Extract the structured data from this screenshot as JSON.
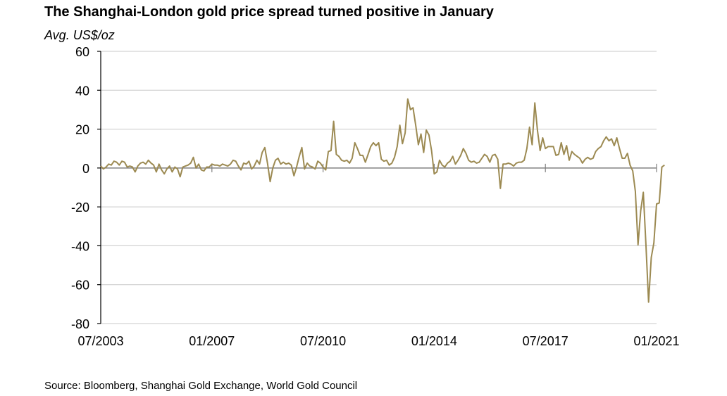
{
  "chart_data": {
    "type": "line",
    "title": "The Shanghai-London gold price spread turned positive in January",
    "ylabel": "Avg. US$/oz",
    "xlabel": "",
    "source": "Source: Bloomberg, Shanghai Gold Exchange, World Gold Council",
    "ylim": [
      -80,
      60
    ],
    "yticks": [
      60,
      40,
      20,
      0,
      -20,
      -40,
      -60,
      -80
    ],
    "ytick_labels": [
      "60",
      "40",
      "20",
      "0",
      "-20",
      "-40",
      "-60",
      "-80"
    ],
    "x_start": "07/2003",
    "x_end": "01/2021",
    "x_frequency": "monthly",
    "xtick_labels": [
      "07/2003",
      "01/2007",
      "07/2010",
      "01/2014",
      "07/2017",
      "01/2021"
    ],
    "xtick_month_index": [
      0,
      42,
      84,
      126,
      168,
      210
    ],
    "grid": true,
    "line_color": "#9c8a52",
    "series": [
      {
        "name": "Shanghai-London gold price spread",
        "values": [
          1,
          -0.5,
          0.5,
          2,
          1.5,
          3.5,
          3,
          1.5,
          3.5,
          3,
          0.5,
          1,
          0.5,
          -2,
          1,
          2.5,
          3,
          2,
          4,
          2.5,
          1.5,
          -2,
          2,
          -1,
          -3,
          -0.5,
          1,
          -2,
          0.5,
          -0.5,
          -4.5,
          0.5,
          1,
          1.5,
          2.5,
          5.5,
          0,
          2,
          -1,
          -1.5,
          0.5,
          0.5,
          2,
          1.5,
          1.5,
          1,
          2,
          1.5,
          1,
          2,
          4,
          3.5,
          1,
          -1,
          2.5,
          2,
          3.5,
          -0.5,
          1,
          4,
          2,
          8,
          10.5,
          2.5,
          -7,
          0,
          4,
          5,
          2,
          3,
          2,
          2.5,
          1.5,
          -4,
          0.5,
          6,
          10.5,
          -0.5,
          2.5,
          1,
          0.5,
          -0.5,
          3.5,
          2.5,
          0.5,
          -1,
          8.5,
          9,
          24,
          7,
          6,
          4,
          3.5,
          4,
          2.5,
          5,
          13,
          10,
          6.5,
          6.5,
          3,
          7,
          11,
          13,
          11.5,
          13,
          4.5,
          3.5,
          4,
          1.5,
          2.5,
          5.5,
          11,
          22,
          12.5,
          18,
          35.5,
          30,
          31,
          22,
          12,
          17.5,
          8,
          19.5,
          17,
          9,
          -3,
          -2,
          4,
          1.5,
          0.5,
          2.5,
          3.5,
          6,
          2,
          4,
          6.5,
          10,
          7.5,
          4,
          3,
          3.5,
          2.5,
          3,
          5,
          7,
          6,
          3,
          6.5,
          7,
          4.5,
          -10.5,
          2,
          2,
          2.5,
          2,
          1,
          2.5,
          3,
          3,
          4,
          10,
          21,
          12,
          33.5,
          19.5,
          9,
          15.5,
          10,
          11,
          11,
          11,
          6.5,
          7,
          13,
          7,
          11.5,
          4,
          8.5,
          7,
          6,
          5,
          2.5,
          4.5,
          5.5,
          4.5,
          5,
          8.5,
          10,
          11,
          14,
          16,
          14,
          15,
          11.5,
          15.5,
          10,
          5,
          5,
          7.5,
          1.5,
          -1.5,
          -12,
          -39.5,
          -22,
          -12.5,
          -40,
          -69,
          -46,
          -38.5,
          -18.5,
          -18,
          0.5,
          1.5
        ]
      }
    ]
  }
}
